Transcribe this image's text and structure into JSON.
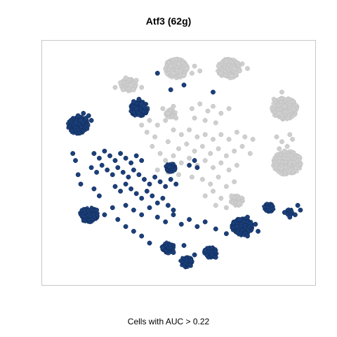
{
  "chart_data": {
    "type": "scatter",
    "title": "Atf3 (62g)",
    "xlabel": "Cells with AUC > 0.22",
    "ylabel": "",
    "axes_visible": false,
    "grid": false,
    "legend": "none",
    "colors": {
      "above_threshold": "#1b3f7a",
      "below_threshold": "#cfcfcf",
      "frame": "#c8c8c8"
    },
    "xlim": [
      0,
      100
    ],
    "ylim": [
      0,
      100
    ],
    "series": [
      {
        "status": "below",
        "points": [
          [
            47,
            91
          ],
          [
            50,
            92
          ],
          [
            53,
            90
          ],
          [
            56,
            91
          ],
          [
            48,
            88
          ],
          [
            52,
            87
          ],
          [
            55,
            88
          ],
          [
            58,
            89
          ],
          [
            65,
            91
          ],
          [
            68,
            93
          ],
          [
            71,
            90
          ],
          [
            74,
            92
          ],
          [
            66,
            88
          ],
          [
            70,
            87
          ],
          [
            73,
            89
          ],
          [
            76,
            90
          ],
          [
            28,
            84
          ],
          [
            30,
            86
          ],
          [
            32,
            83
          ],
          [
            34,
            85
          ],
          [
            29,
            81
          ],
          [
            33,
            81
          ],
          [
            36,
            82
          ],
          [
            26,
            82
          ],
          [
            89,
            80
          ],
          [
            90,
            74
          ],
          [
            88,
            71
          ],
          [
            86,
            77
          ],
          [
            44,
            73
          ],
          [
            46,
            71
          ],
          [
            48,
            74
          ],
          [
            45,
            68
          ],
          [
            49,
            69
          ],
          [
            55,
            73
          ],
          [
            58,
            75
          ],
          [
            61,
            72
          ],
          [
            63,
            74
          ],
          [
            66,
            71
          ],
          [
            69,
            73
          ],
          [
            56,
            69
          ],
          [
            60,
            68
          ],
          [
            64,
            67
          ],
          [
            48,
            64
          ],
          [
            51,
            62
          ],
          [
            54,
            64
          ],
          [
            57,
            61
          ],
          [
            60,
            62
          ],
          [
            63,
            60
          ],
          [
            66,
            62
          ],
          [
            69,
            60
          ],
          [
            72,
            63
          ],
          [
            75,
            61
          ],
          [
            78,
            60
          ],
          [
            46,
            59
          ],
          [
            50,
            56
          ],
          [
            53,
            58
          ],
          [
            56,
            55
          ],
          [
            59,
            57
          ],
          [
            62,
            54
          ],
          [
            65,
            56
          ],
          [
            68,
            53
          ],
          [
            71,
            55
          ],
          [
            74,
            57
          ],
          [
            77,
            54
          ],
          [
            40,
            57
          ],
          [
            43,
            54
          ],
          [
            45,
            51
          ],
          [
            48,
            53
          ],
          [
            51,
            50
          ],
          [
            54,
            52
          ],
          [
            57,
            49
          ],
          [
            60,
            51
          ],
          [
            63,
            48
          ],
          [
            66,
            50
          ],
          [
            69,
            47
          ],
          [
            72,
            49
          ],
          [
            42,
            47
          ],
          [
            46,
            46
          ],
          [
            50,
            45
          ],
          [
            55,
            44
          ],
          [
            59,
            43
          ],
          [
            62,
            41
          ],
          [
            65,
            44
          ],
          [
            68,
            40
          ],
          [
            71,
            42
          ],
          [
            60,
            36
          ],
          [
            63,
            38
          ],
          [
            66,
            35
          ],
          [
            70,
            36
          ],
          [
            73,
            33
          ],
          [
            68,
            31
          ],
          [
            64,
            32
          ],
          [
            87,
            61
          ],
          [
            89,
            59
          ],
          [
            91,
            57
          ],
          [
            93,
            60
          ],
          [
            90,
            55
          ],
          [
            92,
            62
          ],
          [
            88,
            56
          ],
          [
            38,
            63
          ],
          [
            41,
            61
          ],
          [
            36,
            66
          ],
          [
            39,
            68
          ],
          [
            42,
            66
          ]
        ]
      },
      {
        "status": "above",
        "points": [
          [
            12,
            70
          ],
          [
            13,
            68
          ],
          [
            14,
            71
          ],
          [
            15,
            69
          ],
          [
            16,
            70
          ],
          [
            11,
            67
          ],
          [
            17,
            68
          ],
          [
            33,
            76
          ],
          [
            35,
            77
          ],
          [
            36,
            75
          ],
          [
            34,
            73
          ],
          [
            37,
            74
          ],
          [
            18,
            54
          ],
          [
            20,
            52
          ],
          [
            22,
            55
          ],
          [
            24,
            53
          ],
          [
            26,
            51
          ],
          [
            28,
            54
          ],
          [
            30,
            52
          ],
          [
            32,
            50
          ],
          [
            34,
            53
          ],
          [
            36,
            51
          ],
          [
            17,
            48
          ],
          [
            19,
            46
          ],
          [
            21,
            49
          ],
          [
            23,
            47
          ],
          [
            25,
            45
          ],
          [
            27,
            48
          ],
          [
            29,
            46
          ],
          [
            31,
            44
          ],
          [
            33,
            47
          ],
          [
            35,
            45
          ],
          [
            37,
            43
          ],
          [
            39,
            41
          ],
          [
            41,
            44
          ],
          [
            43,
            42
          ],
          [
            45,
            40
          ],
          [
            47,
            43
          ],
          [
            49,
            41
          ],
          [
            26,
            40
          ],
          [
            28,
            38
          ],
          [
            30,
            41
          ],
          [
            32,
            39
          ],
          [
            34,
            37
          ],
          [
            36,
            35
          ],
          [
            38,
            38
          ],
          [
            40,
            36
          ],
          [
            42,
            33
          ],
          [
            44,
            35
          ],
          [
            46,
            32
          ],
          [
            48,
            30
          ],
          [
            30,
            32
          ],
          [
            33,
            30
          ],
          [
            36,
            28
          ],
          [
            39,
            31
          ],
          [
            42,
            27
          ],
          [
            45,
            25
          ],
          [
            48,
            28
          ],
          [
            51,
            24
          ],
          [
            54,
            26
          ],
          [
            57,
            23
          ],
          [
            60,
            25
          ],
          [
            10,
            54
          ],
          [
            11,
            51
          ],
          [
            12,
            45
          ],
          [
            13,
            41
          ],
          [
            18,
            39
          ],
          [
            20,
            36
          ],
          [
            19,
            30
          ],
          [
            22,
            28
          ],
          [
            25,
            31
          ],
          [
            27,
            26
          ],
          [
            30,
            23
          ],
          [
            33,
            21
          ],
          [
            36,
            19
          ],
          [
            39,
            16
          ],
          [
            44,
            14
          ],
          [
            48,
            12
          ],
          [
            52,
            15
          ],
          [
            56,
            11
          ],
          [
            60,
            13
          ],
          [
            64,
            10
          ],
          [
            54,
            49
          ],
          [
            56,
            51
          ],
          [
            57,
            48
          ],
          [
            64,
            22
          ],
          [
            68,
            20
          ],
          [
            72,
            23
          ],
          [
            76,
            19
          ],
          [
            80,
            21
          ],
          [
            73,
            26
          ],
          [
            76,
            27
          ],
          [
            79,
            24
          ],
          [
            90,
            29
          ],
          [
            92,
            27
          ],
          [
            94,
            28
          ],
          [
            95,
            32
          ],
          [
            96,
            30
          ],
          [
            42,
            88
          ],
          [
            47,
            81
          ],
          [
            52,
            83
          ],
          [
            63,
            80
          ]
        ]
      }
    ],
    "clusters": [
      {
        "status": "below",
        "x": 49,
        "y": 90,
        "size": 9
      },
      {
        "status": "below",
        "x": 69,
        "y": 90,
        "size": 9
      },
      {
        "status": "below",
        "x": 31,
        "y": 83,
        "size": 6
      },
      {
        "status": "below",
        "x": 90,
        "y": 73,
        "size": 10
      },
      {
        "status": "below",
        "x": 91,
        "y": 50,
        "size": 11
      },
      {
        "status": "below",
        "x": 47,
        "y": 71,
        "size": 4
      },
      {
        "status": "below",
        "x": 72,
        "y": 34,
        "size": 5
      },
      {
        "status": "above",
        "x": 12,
        "y": 66,
        "size": 8
      },
      {
        "status": "above",
        "x": 35,
        "y": 73,
        "size": 7
      },
      {
        "status": "above",
        "x": 47,
        "y": 48,
        "size": 4
      },
      {
        "status": "above",
        "x": 16,
        "y": 28,
        "size": 7
      },
      {
        "status": "above",
        "x": 74,
        "y": 23,
        "size": 8
      },
      {
        "status": "above",
        "x": 46,
        "y": 14,
        "size": 5
      },
      {
        "status": "above",
        "x": 53,
        "y": 8,
        "size": 5
      },
      {
        "status": "above",
        "x": 62,
        "y": 12,
        "size": 5
      },
      {
        "status": "above",
        "x": 84,
        "y": 31,
        "size": 4
      },
      {
        "status": "above",
        "x": 92,
        "y": 29,
        "size": 3
      }
    ]
  }
}
